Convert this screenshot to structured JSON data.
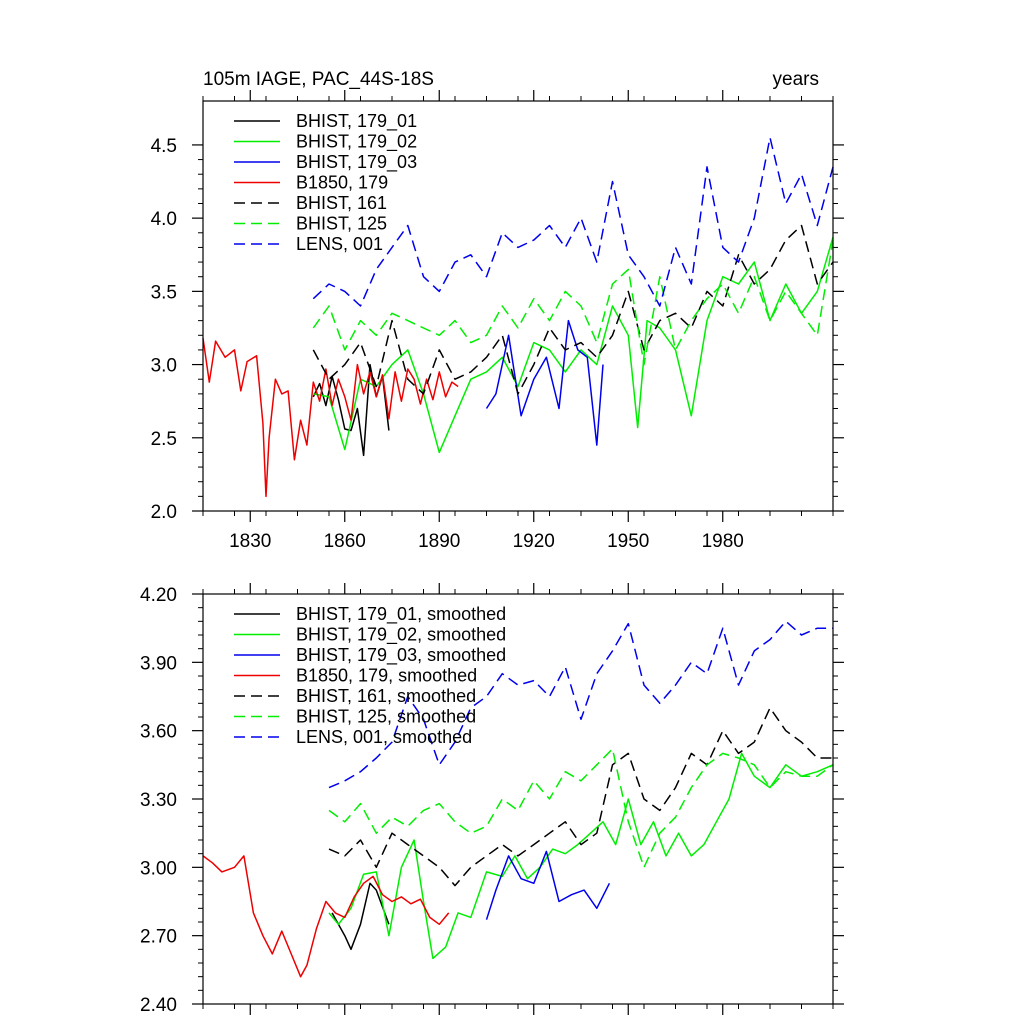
{
  "chart_data": [
    {
      "type": "line",
      "title": "105m IAGE, PAC_44S-18S",
      "title_right": "years",
      "xlim": [
        1815,
        2015
      ],
      "ylim": [
        2.0,
        4.8
      ],
      "xticks": [
        1830,
        1860,
        1890,
        1920,
        1950,
        1980
      ],
      "xtick_labels": [
        "1830",
        "1860",
        "1890",
        "1920",
        "1950",
        "1980"
      ],
      "yticks": [
        2.0,
        2.5,
        3.0,
        3.5,
        4.0,
        4.5
      ],
      "ytick_labels": [
        "2.0",
        "2.5",
        "3.0",
        "3.5",
        "4.0",
        "4.5"
      ],
      "legend_position": "top-left",
      "series": [
        {
          "name": "BHIST, 179_01",
          "color": "#000000",
          "dash": "solid",
          "x": [
            1850,
            1852,
            1854,
            1856,
            1858,
            1860,
            1862,
            1864,
            1866,
            1868,
            1870,
            1872,
            1874
          ],
          "y": [
            2.78,
            2.87,
            2.72,
            2.92,
            2.76,
            2.56,
            2.55,
            2.7,
            2.38,
            3.0,
            2.78,
            2.92,
            2.55
          ]
        },
        {
          "name": "BHIST, 179_02",
          "color": "#00ee00",
          "dash": "solid",
          "x": [
            1850,
            1855,
            1860,
            1865,
            1870,
            1875,
            1880,
            1885,
            1890,
            1895,
            1900,
            1905,
            1910,
            1915,
            1920,
            1925,
            1930,
            1935,
            1940,
            1945,
            1950,
            1953,
            1956,
            1960,
            1965,
            1970,
            1975,
            1980,
            1985,
            1990,
            1995,
            2000,
            2005,
            2010,
            2015
          ],
          "y": [
            2.8,
            2.78,
            2.42,
            2.9,
            2.85,
            3.0,
            3.1,
            2.8,
            2.4,
            2.65,
            2.9,
            2.95,
            3.05,
            2.85,
            3.15,
            3.1,
            2.95,
            3.1,
            3.0,
            3.4,
            3.2,
            2.57,
            3.3,
            3.25,
            3.1,
            2.65,
            3.3,
            3.6,
            3.55,
            3.7,
            3.3,
            3.55,
            3.35,
            3.5,
            3.87
          ]
        },
        {
          "name": "BHIST, 179_03",
          "color": "#0000ee",
          "dash": "solid",
          "x": [
            1905,
            1908,
            1912,
            1916,
            1920,
            1924,
            1928,
            1931,
            1934,
            1937,
            1940,
            1942
          ],
          "y": [
            2.7,
            2.8,
            3.2,
            2.65,
            2.9,
            3.05,
            2.7,
            3.3,
            3.1,
            3.05,
            2.45,
            3.0
          ]
        },
        {
          "name": "B1850, 179",
          "color": "#ee0000",
          "dash": "solid",
          "x": [
            1815,
            1817,
            1819,
            1822,
            1825,
            1827,
            1829,
            1832,
            1834,
            1835,
            1836,
            1838,
            1840,
            1842,
            1844,
            1846,
            1848,
            1850,
            1852,
            1854,
            1856,
            1858,
            1860,
            1862,
            1864,
            1866,
            1868,
            1870,
            1872,
            1874,
            1876,
            1878,
            1880,
            1882,
            1884,
            1886,
            1888,
            1890,
            1892,
            1894,
            1896
          ],
          "y": [
            3.18,
            2.88,
            3.16,
            3.05,
            3.1,
            2.82,
            3.02,
            3.06,
            2.6,
            2.1,
            2.5,
            2.9,
            2.8,
            2.82,
            2.35,
            2.62,
            2.45,
            2.88,
            2.75,
            2.97,
            2.72,
            2.9,
            2.78,
            2.62,
            3.0,
            2.8,
            2.95,
            2.78,
            2.93,
            2.63,
            2.95,
            2.75,
            2.97,
            2.9,
            2.73,
            2.9,
            2.76,
            2.95,
            2.78,
            2.88,
            2.85
          ]
        },
        {
          "name": "BHIST, 161",
          "color": "#000000",
          "dash": "dashed",
          "x": [
            1850,
            1855,
            1860,
            1865,
            1870,
            1875,
            1880,
            1885,
            1890,
            1895,
            1900,
            1905,
            1910,
            1915,
            1920,
            1925,
            1930,
            1935,
            1940,
            1945,
            1950,
            1955,
            1960,
            1965,
            1970,
            1975,
            1980,
            1985,
            1990,
            1995,
            2000,
            2005,
            2010,
            2015
          ],
          "y": [
            3.1,
            2.9,
            3.0,
            3.15,
            2.85,
            3.3,
            2.9,
            2.8,
            3.1,
            2.9,
            2.95,
            3.05,
            3.2,
            2.8,
            3.0,
            3.25,
            3.1,
            3.15,
            3.05,
            3.2,
            3.5,
            3.1,
            3.3,
            3.35,
            3.25,
            3.5,
            3.4,
            3.75,
            3.55,
            3.65,
            3.85,
            3.95,
            3.55,
            3.7
          ]
        },
        {
          "name": "BHIST, 125",
          "color": "#00ee00",
          "dash": "dashed",
          "x": [
            1850,
            1855,
            1860,
            1865,
            1870,
            1875,
            1880,
            1885,
            1890,
            1895,
            1900,
            1905,
            1910,
            1915,
            1920,
            1925,
            1930,
            1935,
            1940,
            1945,
            1950,
            1955,
            1960,
            1965,
            1970,
            1975,
            1980,
            1985,
            1990,
            1995,
            2000,
            2005,
            2010,
            2015
          ],
          "y": [
            3.25,
            3.4,
            3.1,
            3.3,
            3.2,
            3.35,
            3.3,
            3.25,
            3.2,
            3.3,
            3.15,
            3.2,
            3.4,
            3.25,
            3.45,
            3.3,
            3.5,
            3.4,
            3.15,
            3.55,
            3.65,
            3.0,
            3.6,
            3.1,
            3.3,
            3.45,
            3.55,
            3.35,
            3.6,
            3.3,
            3.5,
            3.35,
            3.2,
            3.85
          ]
        },
        {
          "name": "LENS, 001",
          "color": "#0000ee",
          "dash": "dashed",
          "x": [
            1850,
            1855,
            1860,
            1865,
            1870,
            1875,
            1880,
            1885,
            1890,
            1895,
            1900,
            1905,
            1910,
            1915,
            1920,
            1925,
            1930,
            1935,
            1940,
            1945,
            1950,
            1955,
            1960,
            1965,
            1970,
            1975,
            1980,
            1985,
            1990,
            1995,
            2000,
            2005,
            2010,
            2015
          ],
          "y": [
            3.45,
            3.55,
            3.5,
            3.4,
            3.65,
            3.8,
            3.95,
            3.6,
            3.5,
            3.7,
            3.75,
            3.6,
            3.9,
            3.8,
            3.85,
            3.95,
            3.8,
            4.0,
            3.7,
            4.25,
            3.75,
            3.6,
            3.4,
            3.8,
            3.55,
            4.35,
            3.8,
            3.7,
            4.0,
            4.55,
            4.1,
            4.3,
            3.95,
            4.35
          ]
        }
      ]
    },
    {
      "type": "line",
      "xlim": [
        1815,
        2015
      ],
      "ylim": [
        2.4,
        4.2
      ],
      "xticks": [
        1830,
        1860,
        1890,
        1920,
        1950,
        1980
      ],
      "yticks": [
        2.4,
        2.7,
        3.0,
        3.3,
        3.6,
        3.9,
        4.2
      ],
      "ytick_labels": [
        "2.40",
        "2.70",
        "3.00",
        "3.30",
        "3.60",
        "3.90",
        "4.20"
      ],
      "legend_position": "top-left",
      "series": [
        {
          "name": "BHIST, 179_01, smoothed",
          "color": "#000000",
          "dash": "solid",
          "x": [
            1856,
            1860,
            1862,
            1865,
            1868,
            1870,
            1874
          ],
          "y": [
            2.8,
            2.7,
            2.64,
            2.75,
            2.93,
            2.9,
            2.75
          ]
        },
        {
          "name": "BHIST, 179_02, smoothed",
          "color": "#00ee00",
          "dash": "solid",
          "x": [
            1855,
            1858,
            1862,
            1866,
            1870,
            1874,
            1878,
            1882,
            1885,
            1888,
            1892,
            1896,
            1900,
            1905,
            1910,
            1914,
            1918,
            1922,
            1926,
            1930,
            1934,
            1938,
            1942,
            1946,
            1950,
            1954,
            1958,
            1962,
            1966,
            1970,
            1974,
            1978,
            1982,
            1986,
            1990,
            1995,
            2000,
            2005,
            2010,
            2015
          ],
          "y": [
            2.8,
            2.75,
            2.82,
            2.97,
            2.98,
            2.7,
            3.0,
            3.12,
            2.85,
            2.6,
            2.65,
            2.8,
            2.78,
            2.98,
            2.96,
            3.05,
            2.95,
            3.0,
            3.08,
            3.06,
            3.1,
            3.15,
            3.2,
            3.1,
            3.3,
            3.1,
            3.2,
            3.05,
            3.15,
            3.05,
            3.1,
            3.2,
            3.3,
            3.5,
            3.4,
            3.35,
            3.45,
            3.4,
            3.42,
            3.45
          ]
        },
        {
          "name": "BHIST, 179_03, smoothed",
          "color": "#0000ee",
          "dash": "solid",
          "x": [
            1905,
            1908,
            1912,
            1916,
            1920,
            1924,
            1928,
            1932,
            1936,
            1940,
            1944
          ],
          "y": [
            2.77,
            2.9,
            3.05,
            2.95,
            2.93,
            3.07,
            2.85,
            2.88,
            2.9,
            2.82,
            2.93
          ]
        },
        {
          "name": "B1850, 179, smoothed",
          "color": "#ee0000",
          "dash": "solid",
          "x": [
            1815,
            1818,
            1821,
            1825,
            1828,
            1831,
            1834,
            1837,
            1840,
            1843,
            1846,
            1848,
            1851,
            1854,
            1857,
            1860,
            1863,
            1866,
            1869,
            1872,
            1875,
            1878,
            1881,
            1884,
            1887,
            1890,
            1893
          ],
          "y": [
            3.05,
            3.02,
            2.98,
            3.0,
            3.05,
            2.8,
            2.7,
            2.62,
            2.72,
            2.62,
            2.52,
            2.57,
            2.73,
            2.85,
            2.8,
            2.78,
            2.87,
            2.93,
            2.96,
            2.88,
            2.85,
            2.87,
            2.84,
            2.86,
            2.78,
            2.75,
            2.8
          ]
        },
        {
          "name": "BHIST, 161, smoothed",
          "color": "#000000",
          "dash": "dashed",
          "x": [
            1855,
            1860,
            1865,
            1870,
            1875,
            1880,
            1885,
            1890,
            1895,
            1900,
            1905,
            1910,
            1915,
            1920,
            1925,
            1930,
            1935,
            1940,
            1945,
            1950,
            1955,
            1960,
            1965,
            1970,
            1975,
            1980,
            1985,
            1990,
            1995,
            2000,
            2005,
            2010,
            2015
          ],
          "y": [
            3.08,
            3.05,
            3.12,
            3.0,
            3.15,
            3.1,
            3.05,
            3.0,
            2.92,
            3.0,
            3.05,
            3.1,
            3.05,
            3.1,
            3.15,
            3.2,
            3.1,
            3.15,
            3.45,
            3.5,
            3.3,
            3.25,
            3.35,
            3.5,
            3.45,
            3.6,
            3.5,
            3.55,
            3.7,
            3.6,
            3.55,
            3.48,
            3.48
          ]
        },
        {
          "name": "BHIST, 125, smoothed",
          "color": "#00ee00",
          "dash": "dashed",
          "x": [
            1855,
            1860,
            1865,
            1870,
            1875,
            1880,
            1885,
            1890,
            1895,
            1900,
            1905,
            1910,
            1915,
            1920,
            1925,
            1930,
            1935,
            1940,
            1945,
            1950,
            1955,
            1960,
            1965,
            1970,
            1975,
            1980,
            1985,
            1990,
            1995,
            2000,
            2005,
            2010,
            2015
          ],
          "y": [
            3.25,
            3.2,
            3.28,
            3.15,
            3.22,
            3.18,
            3.25,
            3.28,
            3.2,
            3.15,
            3.18,
            3.3,
            3.25,
            3.38,
            3.3,
            3.42,
            3.38,
            3.45,
            3.52,
            3.2,
            3.0,
            3.15,
            3.22,
            3.35,
            3.45,
            3.5,
            3.48,
            3.45,
            3.35,
            3.42,
            3.4,
            3.4,
            3.45
          ]
        },
        {
          "name": "LENS, 001, smoothed",
          "color": "#0000ee",
          "dash": "dashed",
          "x": [
            1855,
            1860,
            1865,
            1870,
            1875,
            1880,
            1885,
            1890,
            1895,
            1900,
            1905,
            1910,
            1915,
            1920,
            1925,
            1930,
            1935,
            1940,
            1945,
            1950,
            1955,
            1960,
            1965,
            1970,
            1975,
            1980,
            1985,
            1990,
            1995,
            2000,
            2005,
            2010,
            2015
          ],
          "y": [
            3.35,
            3.38,
            3.42,
            3.48,
            3.55,
            3.75,
            3.65,
            3.45,
            3.55,
            3.7,
            3.75,
            3.85,
            3.8,
            3.82,
            3.75,
            3.88,
            3.65,
            3.85,
            3.95,
            4.07,
            3.8,
            3.72,
            3.8,
            3.9,
            3.85,
            4.05,
            3.8,
            3.95,
            4.0,
            4.08,
            4.02,
            4.05,
            4.05
          ]
        }
      ]
    }
  ]
}
